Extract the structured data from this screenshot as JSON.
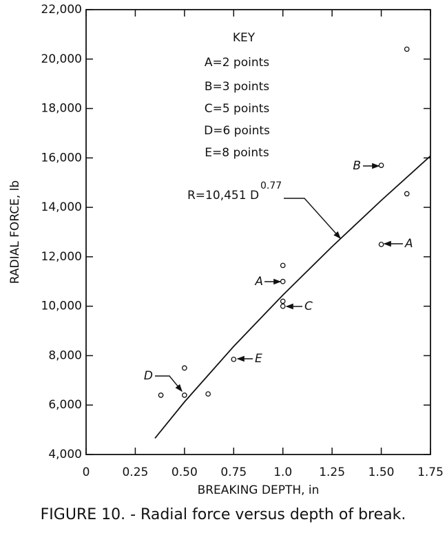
{
  "chart_data": {
    "type": "scatter",
    "xlabel": "BREAKING DEPTH, in",
    "ylabel": "RADIAL FORCE, lb",
    "caption": "FIGURE 10. - Radial force versus depth of break.",
    "xlim": [
      0,
      1.75
    ],
    "ylim": [
      4000,
      22000
    ],
    "xticks": [
      0,
      0.25,
      {
        "value": 0.5,
        "label": "0.50"
      },
      0.75,
      {
        "value": 1,
        "label": "1.0"
      },
      1.25,
      {
        "value": 1.5,
        "label": "1.50"
      },
      1.75
    ],
    "yticks": [
      {
        "value": 4000,
        "label": "4,000"
      },
      {
        "value": 6000,
        "label": "6,000"
      },
      {
        "value": 8000,
        "label": "8,000"
      },
      {
        "value": 10000,
        "label": "10,000"
      },
      {
        "value": 12000,
        "label": "12,000"
      },
      {
        "value": 14000,
        "label": "14,000"
      },
      {
        "value": 16000,
        "label": "16,000"
      },
      {
        "value": 18000,
        "label": "18,000"
      },
      {
        "value": 20000,
        "label": "20,000"
      },
      {
        "value": 22000,
        "label": "22,000"
      }
    ],
    "series": [
      {
        "x": [
          0.38,
          0.5,
          0.5,
          0.62,
          0.75,
          1,
          1,
          1,
          1,
          1.5,
          1.5,
          1.63,
          1.63
        ],
        "values": [
          6400,
          7500,
          6400,
          6450,
          7850,
          11650,
          11000,
          10200,
          10000,
          15700,
          12500,
          14550,
          20400
        ],
        "color": "#111111"
      },
      {
        "x": [
          0.35,
          0.5,
          0.75,
          1,
          1.25,
          1.5,
          1.75
        ],
        "values": [
          4658,
          6128,
          8375,
          10451,
          12411,
          14281,
          16080
        ],
        "color": "#111111"
      }
    ],
    "key": {
      "title": "KEY",
      "entries": [
        "A=2 points",
        "B=3 points",
        "C=5 points",
        "D=6 points",
        "E=8 points"
      ]
    },
    "fit_label": {
      "text": "R=10,451 D",
      "exponent": "0.77"
    },
    "point_labels": [
      "B",
      "A",
      "A",
      "C",
      "D",
      "E"
    ]
  }
}
